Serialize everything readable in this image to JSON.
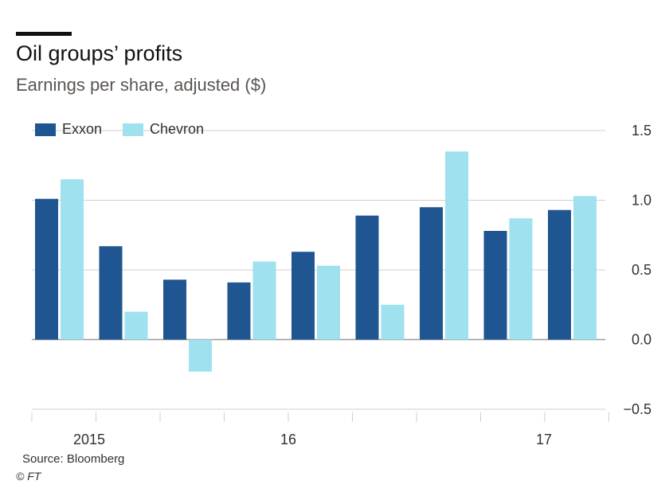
{
  "header": {
    "title": "Oil groups’ profits",
    "subtitle": "Earnings per share, adjusted ($)"
  },
  "footer": {
    "source": "Source: Bloomberg",
    "credit": "© FT"
  },
  "colors": {
    "exxon": "#1f5591",
    "chevron": "#9fe1ee",
    "grid": "#cfcfcf",
    "zero": "#9a9a9a"
  },
  "chart_data": {
    "type": "bar",
    "title": "Oil groups’ profits",
    "subtitle": "Earnings per share, adjusted ($)",
    "xlabel": "",
    "ylabel": "",
    "ylim": [
      -0.5,
      1.5
    ],
    "yticks": [
      -0.5,
      0.0,
      0.5,
      1.0,
      1.5
    ],
    "ytick_labels": [
      "−0.5",
      "0.0",
      "0.5",
      "1.0",
      "1.5"
    ],
    "grid": true,
    "legend_position": "top-left",
    "x_group_labels": [
      "2015",
      "16",
      "17"
    ],
    "series": [
      {
        "name": "Exxon",
        "values": [
          1.01,
          0.67,
          0.43,
          0.41,
          0.63,
          0.89,
          0.95,
          0.78,
          0.93
        ]
      },
      {
        "name": "Chevron",
        "values": [
          1.15,
          0.2,
          -0.23,
          0.56,
          0.53,
          0.25,
          1.35,
          0.87,
          1.03
        ]
      }
    ]
  }
}
